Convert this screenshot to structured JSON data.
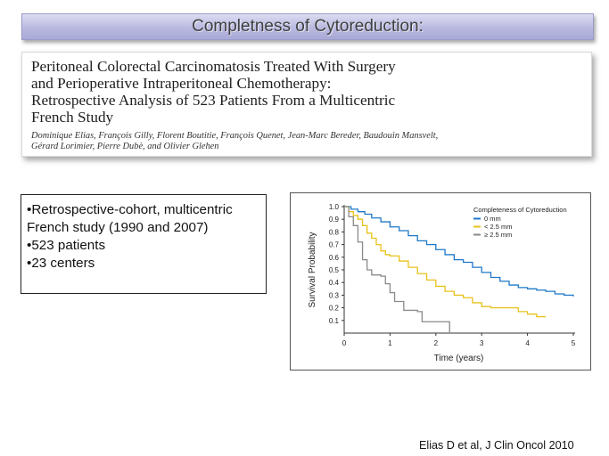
{
  "slide_title": "Completness of Cytoreduction:",
  "paper": {
    "title_lines": [
      "Peritoneal Colorectal Carcinomatosis Treated With Surgery",
      "and Perioperative Intraperitoneal Chemotherapy:",
      "Retrospective Analysis of 523 Patients From a Multicentric",
      "French Study"
    ],
    "author_lines": [
      "Dominique Elias, François Gilly, Florent Boutitie, François Quenet, Jean-Marc Bereder, Baudouin Mansvelt,",
      "Gérard Lorimier, Pierre Dubè, and Olivier Glehen"
    ]
  },
  "facts": [
    "•Retrospective-cohort, multicentric French study (1990 and 2007)",
    "•523 patients",
    "•23 centers"
  ],
  "citation": "Elias D et al, J Clin Oncol 2010",
  "colors": {
    "zero_mm": "#1f78c8",
    "lt_2_5_mm": "#e8c21a",
    "ge_2_5_mm": "#8a8a8a",
    "title_gradient_top": "#dcdcf2",
    "title_gradient_bottom": "#a9a9d6"
  },
  "chart_data": {
    "type": "line",
    "title": "",
    "xlabel": "Time (years)",
    "ylabel": "Survival Probability",
    "xlim": [
      0,
      5
    ],
    "ylim": [
      0,
      1.0
    ],
    "x_ticks": [
      "0",
      "1",
      "2",
      "3",
      "4",
      "5"
    ],
    "y_ticks": [
      "0.1",
      "0.2",
      "0.3",
      "0.4",
      "0.5",
      "0.6",
      "0.7",
      "0.8",
      "0.9",
      "1.0"
    ],
    "legend_title": "Completeness of Cytoreduction",
    "legend_position": "top-right",
    "grid": false,
    "series": [
      {
        "name": "0 mm",
        "color_key": "zero_mm",
        "points": [
          [
            0,
            1.0
          ],
          [
            0.15,
            0.98
          ],
          [
            0.3,
            0.96
          ],
          [
            0.45,
            0.94
          ],
          [
            0.6,
            0.91
          ],
          [
            0.8,
            0.88
          ],
          [
            1.0,
            0.84
          ],
          [
            1.2,
            0.81
          ],
          [
            1.4,
            0.77
          ],
          [
            1.6,
            0.73
          ],
          [
            1.8,
            0.7
          ],
          [
            2.0,
            0.66
          ],
          [
            2.2,
            0.62
          ],
          [
            2.4,
            0.58
          ],
          [
            2.6,
            0.56
          ],
          [
            2.8,
            0.52
          ],
          [
            3.0,
            0.48
          ],
          [
            3.2,
            0.44
          ],
          [
            3.4,
            0.41
          ],
          [
            3.6,
            0.38
          ],
          [
            3.8,
            0.36
          ],
          [
            4.0,
            0.35
          ],
          [
            4.2,
            0.34
          ],
          [
            4.4,
            0.33
          ],
          [
            4.6,
            0.31
          ],
          [
            4.8,
            0.3
          ],
          [
            5.0,
            0.29
          ]
        ]
      },
      {
        "name": "< 2.5 mm",
        "color_key": "lt_2_5_mm",
        "points": [
          [
            0,
            1.0
          ],
          [
            0.1,
            0.96
          ],
          [
            0.2,
            0.93
          ],
          [
            0.3,
            0.9
          ],
          [
            0.4,
            0.85
          ],
          [
            0.5,
            0.79
          ],
          [
            0.6,
            0.75
          ],
          [
            0.7,
            0.7
          ],
          [
            0.8,
            0.65
          ],
          [
            0.9,
            0.62
          ],
          [
            1.0,
            0.61
          ],
          [
            1.2,
            0.57
          ],
          [
            1.4,
            0.52
          ],
          [
            1.6,
            0.47
          ],
          [
            1.8,
            0.42
          ],
          [
            2.0,
            0.37
          ],
          [
            2.2,
            0.33
          ],
          [
            2.4,
            0.3
          ],
          [
            2.6,
            0.28
          ],
          [
            2.8,
            0.24
          ],
          [
            3.0,
            0.21
          ],
          [
            3.2,
            0.2
          ],
          [
            3.6,
            0.2
          ],
          [
            3.8,
            0.17
          ],
          [
            4.0,
            0.15
          ],
          [
            4.2,
            0.13
          ],
          [
            4.4,
            0.13
          ]
        ]
      },
      {
        "name": "≥ 2.5 mm",
        "color_key": "ge_2_5_mm",
        "points": [
          [
            0,
            1.0
          ],
          [
            0.1,
            0.92
          ],
          [
            0.2,
            0.85
          ],
          [
            0.3,
            0.72
          ],
          [
            0.4,
            0.58
          ],
          [
            0.5,
            0.5
          ],
          [
            0.6,
            0.46
          ],
          [
            0.8,
            0.45
          ],
          [
            0.9,
            0.39
          ],
          [
            1.0,
            0.32
          ],
          [
            1.1,
            0.25
          ],
          [
            1.3,
            0.18
          ],
          [
            1.5,
            0.18
          ],
          [
            1.6,
            0.17
          ],
          [
            1.7,
            0.09
          ],
          [
            2.0,
            0.09
          ],
          [
            2.2,
            0.09
          ],
          [
            2.3,
            0.0
          ]
        ]
      }
    ]
  }
}
